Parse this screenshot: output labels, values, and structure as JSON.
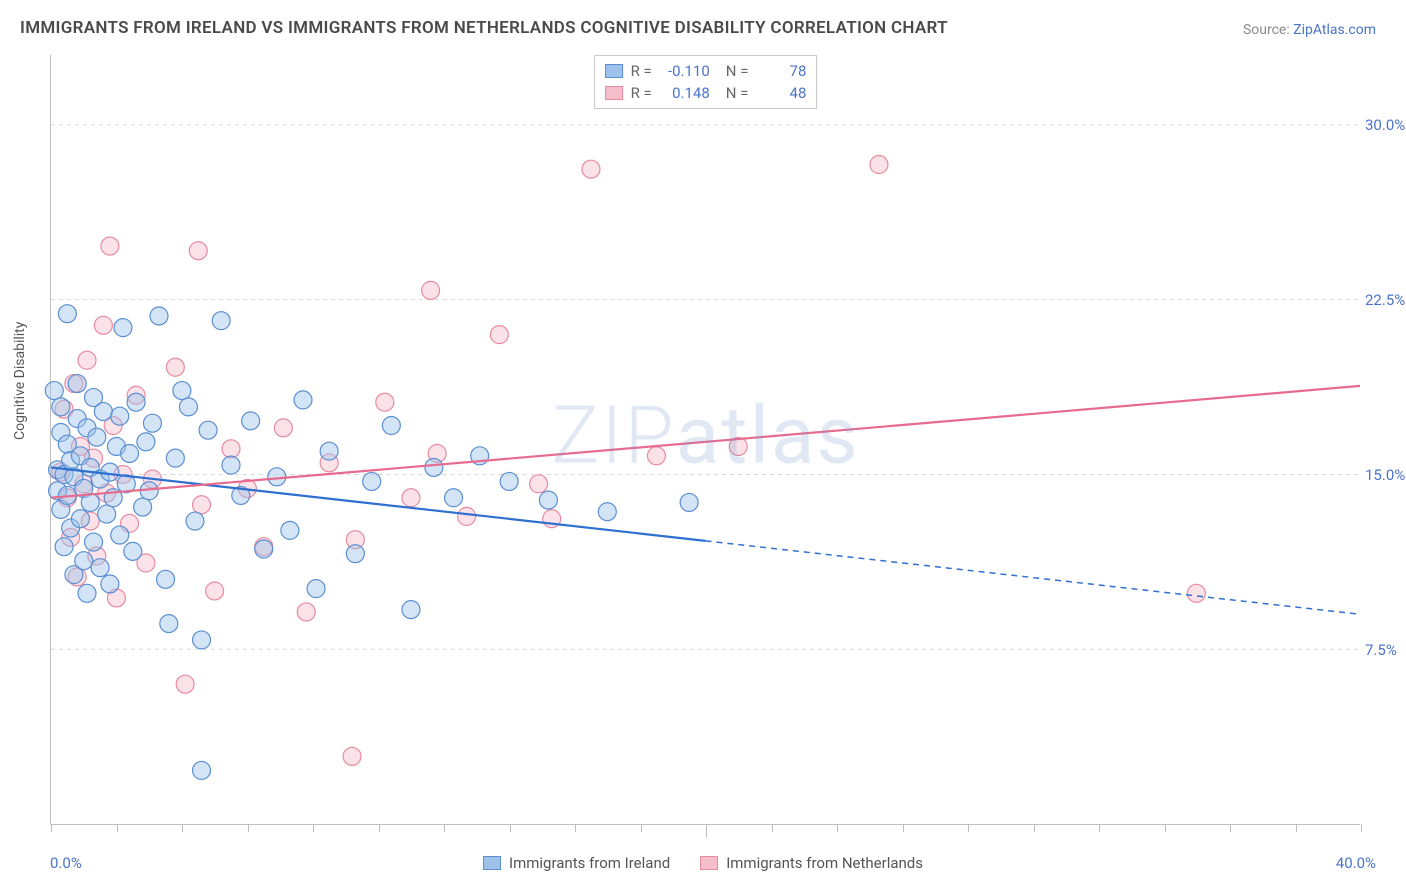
{
  "title": "IMMIGRANTS FROM IRELAND VS IMMIGRANTS FROM NETHERLANDS COGNITIVE DISABILITY CORRELATION CHART",
  "source": {
    "label": "Source: ",
    "name": "ZipAtlas.com"
  },
  "watermark": "ZIPatlas",
  "ylabel": "Cognitive Disability",
  "chart": {
    "type": "scatter-correlation",
    "xlim": [
      0,
      40
    ],
    "ylim": [
      0,
      33
    ],
    "xticks_minor_step": 2,
    "xticks_major": [
      20
    ],
    "x_axis_labels": {
      "min": "0.0%",
      "max": "40.0%"
    },
    "y_gridlines": [
      7.5,
      15.0,
      22.5,
      30.0
    ],
    "y_tick_labels": [
      "7.5%",
      "15.0%",
      "22.5%",
      "30.0%"
    ],
    "background_color": "#ffffff",
    "grid_color": "#d6d6d6",
    "axis_color": "#bfbfbf",
    "tick_label_color": "#4a74c9",
    "marker_radius": 9,
    "marker_fill_opacity": 0.45,
    "marker_stroke_width": 1.2,
    "line_width_solid": 2.2,
    "line_width_dashed": 1.5,
    "dash_pattern": "6 5"
  },
  "series": {
    "ireland": {
      "label": "Immigrants from Ireland",
      "color_fill": "#9ec3ea",
      "color_stroke": "#5b8fd1",
      "line_color": "#2f6fd0",
      "R": "-0.110",
      "N": "78",
      "trend": {
        "x1": 0,
        "y1": 15.3,
        "x2": 40,
        "y2": 9.0,
        "solid_until_x": 20
      },
      "points": [
        [
          0.1,
          18.6
        ],
        [
          0.2,
          15.2
        ],
        [
          0.2,
          14.3
        ],
        [
          0.3,
          16.8
        ],
        [
          0.3,
          17.9
        ],
        [
          0.3,
          13.5
        ],
        [
          0.4,
          15.0
        ],
        [
          0.4,
          11.9
        ],
        [
          0.5,
          21.9
        ],
        [
          0.5,
          14.1
        ],
        [
          0.5,
          16.3
        ],
        [
          0.6,
          15.6
        ],
        [
          0.6,
          12.7
        ],
        [
          0.7,
          14.9
        ],
        [
          0.7,
          10.7
        ],
        [
          0.8,
          17.4
        ],
        [
          0.8,
          18.9
        ],
        [
          0.9,
          13.1
        ],
        [
          0.9,
          15.8
        ],
        [
          1.0,
          14.4
        ],
        [
          1.0,
          11.3
        ],
        [
          1.1,
          17.0
        ],
        [
          1.1,
          9.9
        ],
        [
          1.2,
          15.3
        ],
        [
          1.2,
          13.8
        ],
        [
          1.3,
          18.3
        ],
        [
          1.3,
          12.1
        ],
        [
          1.4,
          16.6
        ],
        [
          1.5,
          11.0
        ],
        [
          1.5,
          14.8
        ],
        [
          1.6,
          17.7
        ],
        [
          1.7,
          13.3
        ],
        [
          1.8,
          15.1
        ],
        [
          1.8,
          10.3
        ],
        [
          1.9,
          14.0
        ],
        [
          2.0,
          16.2
        ],
        [
          2.1,
          17.5
        ],
        [
          2.1,
          12.4
        ],
        [
          2.2,
          21.3
        ],
        [
          2.3,
          14.6
        ],
        [
          2.4,
          15.9
        ],
        [
          2.5,
          11.7
        ],
        [
          2.6,
          18.1
        ],
        [
          2.8,
          13.6
        ],
        [
          2.9,
          16.4
        ],
        [
          3.0,
          14.3
        ],
        [
          3.1,
          17.2
        ],
        [
          3.3,
          21.8
        ],
        [
          3.5,
          10.5
        ],
        [
          3.6,
          8.6
        ],
        [
          3.8,
          15.7
        ],
        [
          4.0,
          18.6
        ],
        [
          4.2,
          17.9
        ],
        [
          4.4,
          13.0
        ],
        [
          4.6,
          7.9
        ],
        [
          4.8,
          16.9
        ],
        [
          5.2,
          21.6
        ],
        [
          5.5,
          15.4
        ],
        [
          5.8,
          14.1
        ],
        [
          6.1,
          17.3
        ],
        [
          6.5,
          11.8
        ],
        [
          6.9,
          14.9
        ],
        [
          7.3,
          12.6
        ],
        [
          7.7,
          18.2
        ],
        [
          8.1,
          10.1
        ],
        [
          8.5,
          16.0
        ],
        [
          4.6,
          2.3
        ],
        [
          9.3,
          11.6
        ],
        [
          9.8,
          14.7
        ],
        [
          10.4,
          17.1
        ],
        [
          11.0,
          9.2
        ],
        [
          11.7,
          15.3
        ],
        [
          12.3,
          14.0
        ],
        [
          13.1,
          15.8
        ],
        [
          14.0,
          14.7
        ],
        [
          15.2,
          13.9
        ],
        [
          17.0,
          13.4
        ],
        [
          19.5,
          13.8
        ]
      ]
    },
    "netherlands": {
      "label": "Immigrants from Netherlands",
      "color_fill": "#f4bfcb",
      "color_stroke": "#e88aa2",
      "line_color": "#e76b8f",
      "R": "0.148",
      "N": "48",
      "trend": {
        "x1": 0,
        "y1": 14.0,
        "x2": 40,
        "y2": 18.8,
        "solid_until_x": 40
      },
      "points": [
        [
          0.3,
          15.1
        ],
        [
          0.4,
          17.8
        ],
        [
          0.5,
          14.0
        ],
        [
          0.6,
          12.3
        ],
        [
          0.7,
          18.9
        ],
        [
          0.8,
          10.6
        ],
        [
          0.9,
          16.2
        ],
        [
          1.0,
          14.6
        ],
        [
          1.1,
          19.9
        ],
        [
          1.2,
          13.0
        ],
        [
          1.3,
          15.7
        ],
        [
          1.4,
          11.5
        ],
        [
          1.6,
          21.4
        ],
        [
          1.7,
          14.2
        ],
        [
          1.9,
          17.1
        ],
        [
          2.0,
          9.7
        ],
        [
          2.2,
          15.0
        ],
        [
          2.4,
          12.9
        ],
        [
          2.6,
          18.4
        ],
        [
          2.9,
          11.2
        ],
        [
          3.1,
          14.8
        ],
        [
          1.8,
          24.8
        ],
        [
          3.8,
          19.6
        ],
        [
          4.5,
          24.6
        ],
        [
          4.6,
          13.7
        ],
        [
          5.0,
          10.0
        ],
        [
          5.5,
          16.1
        ],
        [
          6.0,
          14.4
        ],
        [
          4.1,
          6.0
        ],
        [
          6.5,
          11.9
        ],
        [
          7.1,
          17.0
        ],
        [
          7.8,
          9.1
        ],
        [
          8.5,
          15.5
        ],
        [
          9.3,
          12.2
        ],
        [
          9.2,
          2.9
        ],
        [
          10.2,
          18.1
        ],
        [
          11.0,
          14.0
        ],
        [
          11.8,
          15.9
        ],
        [
          11.6,
          22.9
        ],
        [
          12.7,
          13.2
        ],
        [
          13.7,
          21.0
        ],
        [
          14.9,
          14.6
        ],
        [
          16.5,
          28.1
        ],
        [
          15.3,
          13.1
        ],
        [
          18.5,
          15.8
        ],
        [
          25.3,
          28.3
        ],
        [
          35.0,
          9.9
        ],
        [
          21.0,
          16.2
        ]
      ]
    }
  }
}
